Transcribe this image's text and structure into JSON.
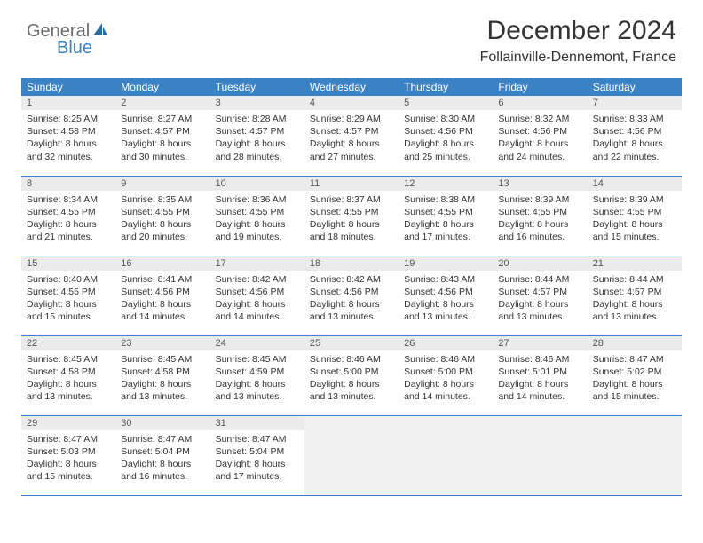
{
  "logo": {
    "word1": "General",
    "word2": "Blue"
  },
  "title": "December 2024",
  "location": "Follainville-Dennemont, France",
  "colors": {
    "header_bg": "#3b82c4",
    "header_text": "#ffffff",
    "daynum_bg": "#ebebeb",
    "row_border": "#3b82c4",
    "body_text": "#333333",
    "empty_bg": "#f0f0f0"
  },
  "days_of_week": [
    "Sunday",
    "Monday",
    "Tuesday",
    "Wednesday",
    "Thursday",
    "Friday",
    "Saturday"
  ],
  "weeks": [
    [
      {
        "n": "1",
        "sr": "8:25 AM",
        "ss": "4:58 PM",
        "dl": "8 hours and 32 minutes."
      },
      {
        "n": "2",
        "sr": "8:27 AM",
        "ss": "4:57 PM",
        "dl": "8 hours and 30 minutes."
      },
      {
        "n": "3",
        "sr": "8:28 AM",
        "ss": "4:57 PM",
        "dl": "8 hours and 28 minutes."
      },
      {
        "n": "4",
        "sr": "8:29 AM",
        "ss": "4:57 PM",
        "dl": "8 hours and 27 minutes."
      },
      {
        "n": "5",
        "sr": "8:30 AM",
        "ss": "4:56 PM",
        "dl": "8 hours and 25 minutes."
      },
      {
        "n": "6",
        "sr": "8:32 AM",
        "ss": "4:56 PM",
        "dl": "8 hours and 24 minutes."
      },
      {
        "n": "7",
        "sr": "8:33 AM",
        "ss": "4:56 PM",
        "dl": "8 hours and 22 minutes."
      }
    ],
    [
      {
        "n": "8",
        "sr": "8:34 AM",
        "ss": "4:55 PM",
        "dl": "8 hours and 21 minutes."
      },
      {
        "n": "9",
        "sr": "8:35 AM",
        "ss": "4:55 PM",
        "dl": "8 hours and 20 minutes."
      },
      {
        "n": "10",
        "sr": "8:36 AM",
        "ss": "4:55 PM",
        "dl": "8 hours and 19 minutes."
      },
      {
        "n": "11",
        "sr": "8:37 AM",
        "ss": "4:55 PM",
        "dl": "8 hours and 18 minutes."
      },
      {
        "n": "12",
        "sr": "8:38 AM",
        "ss": "4:55 PM",
        "dl": "8 hours and 17 minutes."
      },
      {
        "n": "13",
        "sr": "8:39 AM",
        "ss": "4:55 PM",
        "dl": "8 hours and 16 minutes."
      },
      {
        "n": "14",
        "sr": "8:39 AM",
        "ss": "4:55 PM",
        "dl": "8 hours and 15 minutes."
      }
    ],
    [
      {
        "n": "15",
        "sr": "8:40 AM",
        "ss": "4:55 PM",
        "dl": "8 hours and 15 minutes."
      },
      {
        "n": "16",
        "sr": "8:41 AM",
        "ss": "4:56 PM",
        "dl": "8 hours and 14 minutes."
      },
      {
        "n": "17",
        "sr": "8:42 AM",
        "ss": "4:56 PM",
        "dl": "8 hours and 14 minutes."
      },
      {
        "n": "18",
        "sr": "8:42 AM",
        "ss": "4:56 PM",
        "dl": "8 hours and 13 minutes."
      },
      {
        "n": "19",
        "sr": "8:43 AM",
        "ss": "4:56 PM",
        "dl": "8 hours and 13 minutes."
      },
      {
        "n": "20",
        "sr": "8:44 AM",
        "ss": "4:57 PM",
        "dl": "8 hours and 13 minutes."
      },
      {
        "n": "21",
        "sr": "8:44 AM",
        "ss": "4:57 PM",
        "dl": "8 hours and 13 minutes."
      }
    ],
    [
      {
        "n": "22",
        "sr": "8:45 AM",
        "ss": "4:58 PM",
        "dl": "8 hours and 13 minutes."
      },
      {
        "n": "23",
        "sr": "8:45 AM",
        "ss": "4:58 PM",
        "dl": "8 hours and 13 minutes."
      },
      {
        "n": "24",
        "sr": "8:45 AM",
        "ss": "4:59 PM",
        "dl": "8 hours and 13 minutes."
      },
      {
        "n": "25",
        "sr": "8:46 AM",
        "ss": "5:00 PM",
        "dl": "8 hours and 13 minutes."
      },
      {
        "n": "26",
        "sr": "8:46 AM",
        "ss": "5:00 PM",
        "dl": "8 hours and 14 minutes."
      },
      {
        "n": "27",
        "sr": "8:46 AM",
        "ss": "5:01 PM",
        "dl": "8 hours and 14 minutes."
      },
      {
        "n": "28",
        "sr": "8:47 AM",
        "ss": "5:02 PM",
        "dl": "8 hours and 15 minutes."
      }
    ],
    [
      {
        "n": "29",
        "sr": "8:47 AM",
        "ss": "5:03 PM",
        "dl": "8 hours and 15 minutes."
      },
      {
        "n": "30",
        "sr": "8:47 AM",
        "ss": "5:04 PM",
        "dl": "8 hours and 16 minutes."
      },
      {
        "n": "31",
        "sr": "8:47 AM",
        "ss": "5:04 PM",
        "dl": "8 hours and 17 minutes."
      },
      null,
      null,
      null,
      null
    ]
  ],
  "labels": {
    "sunrise": "Sunrise:",
    "sunset": "Sunset:",
    "daylight": "Daylight:"
  }
}
